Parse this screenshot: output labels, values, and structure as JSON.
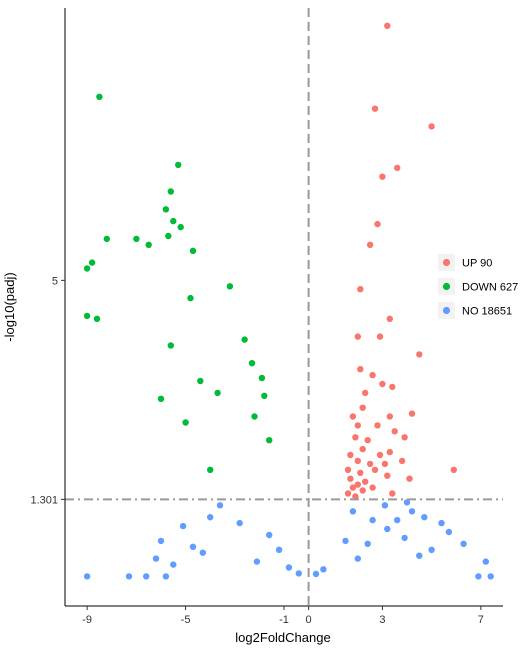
{
  "chart_data": {
    "type": "scatter",
    "xlabel": "log2FoldChange",
    "ylabel": "-log10(padj)",
    "x_ticks": [
      -9,
      -5,
      -1,
      0,
      3,
      7
    ],
    "x_tick_labels": [
      "-9",
      "-5",
      "-1",
      "0",
      "3",
      "7"
    ],
    "y_ticks": [
      1.301,
      5
    ],
    "y_tick_labels": [
      "1.301",
      "5"
    ],
    "xlim": [
      -9.9,
      7.9
    ],
    "ylim": [
      -0.5,
      9.6
    ],
    "reference_lines": {
      "vertical_x": 0,
      "horizontal_y": 1.301
    },
    "grid": false,
    "legend_position": "right",
    "series": [
      {
        "name": "UP 90",
        "color": "#F8766D",
        "points": [
          [
            3.2,
            9.3
          ],
          [
            2.7,
            7.9
          ],
          [
            5.0,
            7.6
          ],
          [
            3.6,
            6.9
          ],
          [
            3.0,
            6.75
          ],
          [
            2.8,
            5.95
          ],
          [
            2.5,
            5.6
          ],
          [
            2.1,
            4.85
          ],
          [
            3.3,
            4.35
          ],
          [
            2.0,
            4.05
          ],
          [
            2.9,
            4.05
          ],
          [
            4.5,
            3.75
          ],
          [
            2.1,
            3.5
          ],
          [
            2.6,
            3.4
          ],
          [
            3.4,
            3.2
          ],
          [
            2.3,
            3.1
          ],
          [
            3.0,
            3.25
          ],
          [
            2.2,
            2.85
          ],
          [
            1.8,
            2.7
          ],
          [
            3.3,
            2.7
          ],
          [
            4.2,
            2.75
          ],
          [
            2.0,
            2.55
          ],
          [
            2.8,
            2.55
          ],
          [
            3.5,
            2.45
          ],
          [
            1.9,
            2.35
          ],
          [
            2.4,
            2.3
          ],
          [
            3.9,
            2.35
          ],
          [
            2.2,
            2.15
          ],
          [
            1.7,
            2.05
          ],
          [
            2.9,
            2.05
          ],
          [
            3.3,
            2.1
          ],
          [
            2.0,
            1.95
          ],
          [
            2.5,
            1.9
          ],
          [
            3.1,
            1.9
          ],
          [
            3.8,
            1.95
          ],
          [
            1.6,
            1.8
          ],
          [
            2.1,
            1.75
          ],
          [
            2.7,
            1.8
          ],
          [
            5.9,
            1.8
          ],
          [
            1.7,
            1.65
          ],
          [
            2.3,
            1.6
          ],
          [
            3.2,
            1.7
          ],
          [
            4.1,
            1.65
          ],
          [
            1.8,
            1.5
          ],
          [
            2.0,
            1.55
          ],
          [
            2.6,
            1.5
          ],
          [
            1.6,
            1.4
          ],
          [
            2.2,
            1.45
          ],
          [
            3.4,
            1.4
          ],
          [
            1.9,
            1.35
          ]
        ]
      },
      {
        "name": "DOWN 627",
        "color": "#00BA38",
        "points": [
          [
            -8.5,
            8.1
          ],
          [
            -5.3,
            6.95
          ],
          [
            -5.6,
            6.5
          ],
          [
            -5.8,
            6.2
          ],
          [
            -5.5,
            6.0
          ],
          [
            -5.2,
            5.9
          ],
          [
            -5.7,
            5.75
          ],
          [
            -8.2,
            5.7
          ],
          [
            -9.0,
            5.2
          ],
          [
            -8.8,
            5.3
          ],
          [
            -7.0,
            5.7
          ],
          [
            -6.5,
            5.6
          ],
          [
            -4.7,
            5.5
          ],
          [
            -3.2,
            4.9
          ],
          [
            -4.8,
            4.7
          ],
          [
            -9.0,
            4.4
          ],
          [
            -8.6,
            4.35
          ],
          [
            -2.6,
            4.0
          ],
          [
            -2.3,
            3.6
          ],
          [
            -1.9,
            3.35
          ],
          [
            -1.8,
            3.05
          ],
          [
            -2.2,
            2.7
          ],
          [
            -3.7,
            3.1
          ],
          [
            -1.6,
            2.3
          ],
          [
            -4.0,
            1.8
          ],
          [
            -5.0,
            2.6
          ],
          [
            -6.0,
            3.0
          ],
          [
            -4.4,
            3.3
          ],
          [
            -5.6,
            3.9
          ]
        ]
      },
      {
        "name": "NO 18651",
        "color": "#619CFF",
        "points": [
          [
            -9.0,
            0.0
          ],
          [
            -7.3,
            0.0
          ],
          [
            -6.6,
            0.0
          ],
          [
            -5.8,
            0.0
          ],
          [
            6.9,
            0.0
          ],
          [
            7.4,
            0.0
          ],
          [
            4.5,
            0.35
          ],
          [
            5.0,
            0.45
          ],
          [
            6.3,
            0.55
          ],
          [
            7.2,
            0.25
          ],
          [
            5.7,
            0.75
          ],
          [
            3.9,
            0.65
          ],
          [
            4.7,
            1.0
          ],
          [
            3.1,
            1.2
          ],
          [
            5.4,
            0.9
          ],
          [
            3.6,
            0.95
          ],
          [
            4.2,
            1.1
          ],
          [
            2.6,
            0.95
          ],
          [
            4.0,
            1.25
          ],
          [
            3.2,
            0.8
          ],
          [
            -5.5,
            0.2
          ],
          [
            -6.2,
            0.3
          ],
          [
            -4.7,
            0.5
          ],
          [
            -5.1,
            0.85
          ],
          [
            -4.0,
            1.0
          ],
          [
            -6.0,
            0.6
          ],
          [
            -3.6,
            1.2
          ],
          [
            -4.3,
            0.4
          ],
          [
            2.0,
            0.3
          ],
          [
            1.5,
            0.6
          ],
          [
            2.4,
            0.55
          ],
          [
            1.8,
            1.1
          ],
          [
            -2.1,
            0.25
          ],
          [
            -1.6,
            0.7
          ],
          [
            -2.8,
            0.9
          ],
          [
            -0.8,
            0.15
          ],
          [
            0.6,
            0.12
          ],
          [
            -0.4,
            0.05
          ],
          [
            0.3,
            0.04
          ],
          [
            -1.2,
            0.45
          ]
        ]
      }
    ]
  }
}
